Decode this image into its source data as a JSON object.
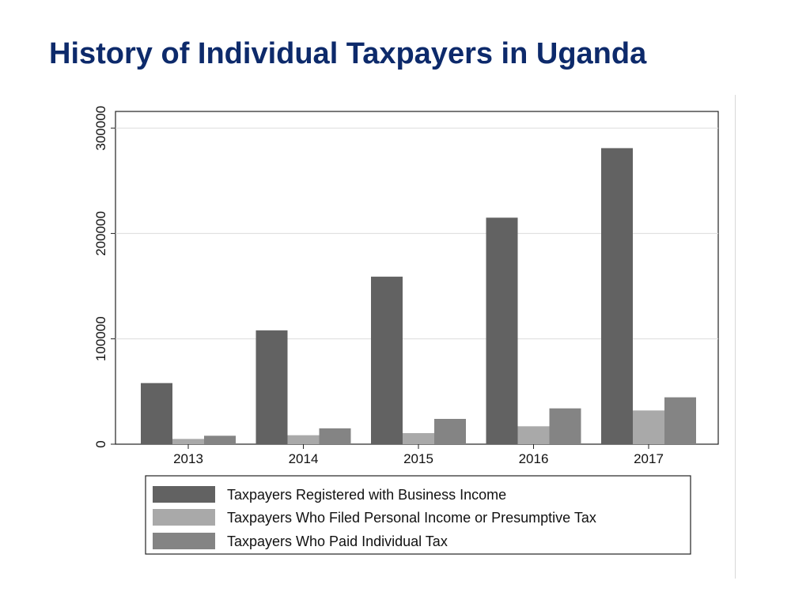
{
  "slide": {
    "title": "History of Individual Taxpayers in Uganda"
  },
  "chart_data": {
    "type": "bar",
    "title": "",
    "xlabel": "",
    "ylabel": "",
    "categories": [
      "2013",
      "2014",
      "2015",
      "2016",
      "2017"
    ],
    "ylim": [
      0,
      300000
    ],
    "yticks": [
      "0",
      "100000",
      "200000",
      "300000"
    ],
    "grid": true,
    "legend_position": "bottom",
    "series": [
      {
        "name": "Taxpayers Registered with Business Income",
        "values": [
          58000,
          108000,
          159000,
          215000,
          281000
        ],
        "color": "#626262"
      },
      {
        "name": "Taxpayers Who Filed Personal Income or Presumptive Tax",
        "values": [
          5000,
          8500,
          10500,
          17000,
          32000
        ],
        "color": "#a9a9a9"
      },
      {
        "name": "Taxpayers Who Paid Individual Tax",
        "values": [
          8000,
          15000,
          24000,
          34000,
          44500
        ],
        "color": "#848484"
      }
    ]
  }
}
